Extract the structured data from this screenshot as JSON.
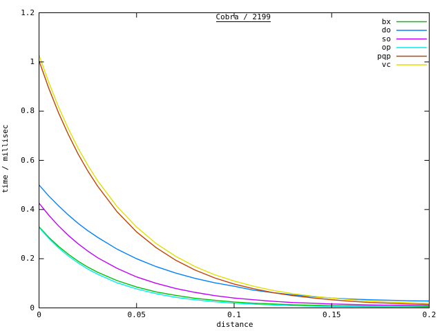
{
  "title": "Cobra / 2199",
  "axes": {
    "xlabel": "distance",
    "ylabel": "time / millisec",
    "x_tick_labels": [
      "0",
      "0.05",
      "0.1",
      "0.15",
      "0.2"
    ],
    "x_tick_values": [
      0,
      0.05,
      0.1,
      0.15,
      0.2
    ],
    "y_tick_labels": [
      "0",
      "0.2",
      "0.4",
      "0.6",
      "0.8",
      "1",
      "1.2"
    ],
    "y_tick_values": [
      0,
      0.2,
      0.4,
      0.6,
      0.8,
      1.0,
      1.2
    ]
  },
  "chart_data": {
    "type": "line",
    "title": "Cobra / 2199",
    "xlabel": "distance",
    "ylabel": "time / millisec",
    "xlim": [
      0,
      0.2
    ],
    "ylim": [
      0,
      1.2
    ],
    "grid": false,
    "legend_position": "top-right-inside",
    "x": [
      0,
      0.005,
      0.01,
      0.015,
      0.02,
      0.025,
      0.03,
      0.04,
      0.05,
      0.06,
      0.07,
      0.08,
      0.09,
      0.1,
      0.11,
      0.12,
      0.13,
      0.14,
      0.15,
      0.16,
      0.17,
      0.18,
      0.19,
      0.2
    ],
    "series": [
      {
        "name": "bx",
        "color": "#00c000",
        "values": [
          0.33,
          0.287,
          0.25,
          0.218,
          0.19,
          0.166,
          0.145,
          0.111,
          0.085,
          0.065,
          0.051,
          0.039,
          0.031,
          0.024,
          0.019,
          0.016,
          0.013,
          0.011,
          0.009,
          0.008,
          0.007,
          0.006,
          0.006,
          0.005
        ]
      },
      {
        "name": "do",
        "color": "#0080ff",
        "values": [
          0.5,
          0.455,
          0.415,
          0.378,
          0.344,
          0.314,
          0.287,
          0.239,
          0.2,
          0.168,
          0.142,
          0.12,
          0.102,
          0.088,
          0.072,
          0.062,
          0.053,
          0.046,
          0.04,
          0.036,
          0.033,
          0.031,
          0.029,
          0.028
        ]
      },
      {
        "name": "so",
        "color": "#c000ff",
        "values": [
          0.426,
          0.377,
          0.333,
          0.295,
          0.261,
          0.231,
          0.204,
          0.161,
          0.126,
          0.1,
          0.079,
          0.063,
          0.05,
          0.04,
          0.033,
          0.027,
          0.022,
          0.019,
          0.016,
          0.014,
          0.012,
          0.011,
          0.01,
          0.009
        ]
      },
      {
        "name": "op",
        "color": "#00eeee",
        "values": [
          0.327,
          0.283,
          0.244,
          0.211,
          0.183,
          0.158,
          0.137,
          0.102,
          0.077,
          0.058,
          0.043,
          0.033,
          0.025,
          0.019,
          0.015,
          0.012,
          0.009,
          0.007,
          0.006,
          0.005,
          0.004,
          0.004,
          0.004,
          0.003
        ]
      },
      {
        "name": "pqp",
        "color": "#c04000",
        "values": [
          1.005,
          0.893,
          0.793,
          0.705,
          0.626,
          0.557,
          0.495,
          0.391,
          0.309,
          0.245,
          0.194,
          0.154,
          0.122,
          0.097,
          0.078,
          0.062,
          0.05,
          0.041,
          0.033,
          0.027,
          0.022,
          0.019,
          0.016,
          0.014
        ]
      },
      {
        "name": "vc",
        "color": "#e0e000",
        "values": [
          1.028,
          0.917,
          0.817,
          0.729,
          0.65,
          0.58,
          0.517,
          0.412,
          0.329,
          0.262,
          0.21,
          0.168,
          0.135,
          0.109,
          0.088,
          0.071,
          0.058,
          0.048,
          0.04,
          0.033,
          0.028,
          0.024,
          0.021,
          0.018
        ]
      }
    ]
  },
  "colors": {
    "foreground": "#000000",
    "background": "#ffffff"
  }
}
